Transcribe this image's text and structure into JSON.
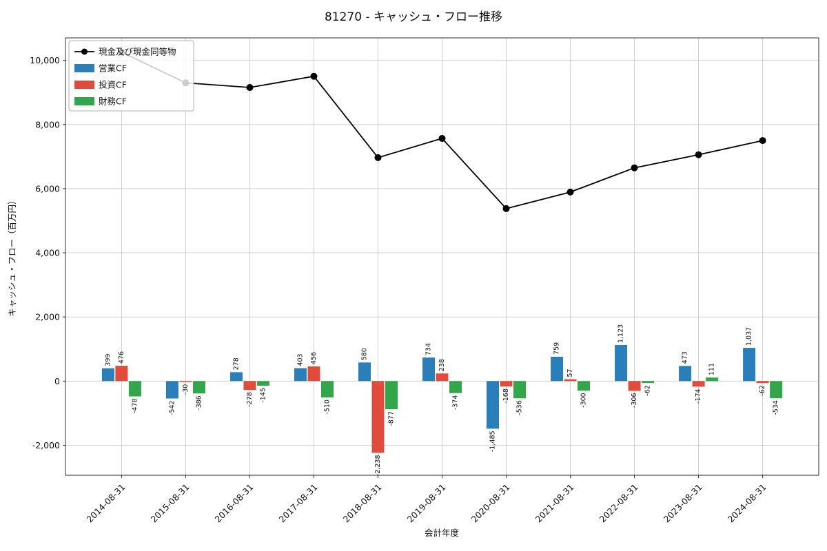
{
  "chart_data": {
    "type": "bar",
    "combo": "grouped bars + line overlay",
    "title": "81270 - キャッシュ・フロー推移",
    "xlabel": "会計年度",
    "ylabel": "キャッシュ・フロー（百万円）",
    "categories": [
      "2014-08-31",
      "2015-08-31",
      "2016-08-31",
      "2017-08-31",
      "2018-08-31",
      "2019-08-31",
      "2020-08-31",
      "2021-08-31",
      "2022-08-31",
      "2023-08-31",
      "2024-08-31"
    ],
    "series": [
      {
        "name": "営業CF",
        "type": "bar",
        "color": "#2a7fba",
        "values": [
          399,
          -542,
          278,
          403,
          580,
          734,
          -1485,
          759,
          1123,
          473,
          1037
        ]
      },
      {
        "name": "投資CF",
        "type": "bar",
        "color": "#e14b3c",
        "values": [
          476,
          -30,
          -278,
          456,
          -2238,
          238,
          -168,
          57,
          -306,
          -174,
          -62
        ]
      },
      {
        "name": "財務CF",
        "type": "bar",
        "color": "#33a64c",
        "values": [
          -478,
          -386,
          -145,
          -510,
          -877,
          -374,
          -536,
          -300,
          -62,
          111,
          -534
        ]
      },
      {
        "name": "現金及び現金同等物",
        "type": "line",
        "color": "#000000",
        "estimated_from_plot": true,
        "values": [
          10258,
          9300,
          9155,
          9504,
          6969,
          7567,
          5378,
          5894,
          6649,
          7059,
          7500
        ]
      }
    ],
    "yticks": [
      -2000,
      0,
      2000,
      4000,
      6000,
      8000,
      10000
    ],
    "ylim": [
      -2936,
      10702
    ],
    "xlim": [
      -0.875,
      10.875
    ],
    "grid": true,
    "legend_position": "upper left",
    "background": "#ffffff"
  }
}
